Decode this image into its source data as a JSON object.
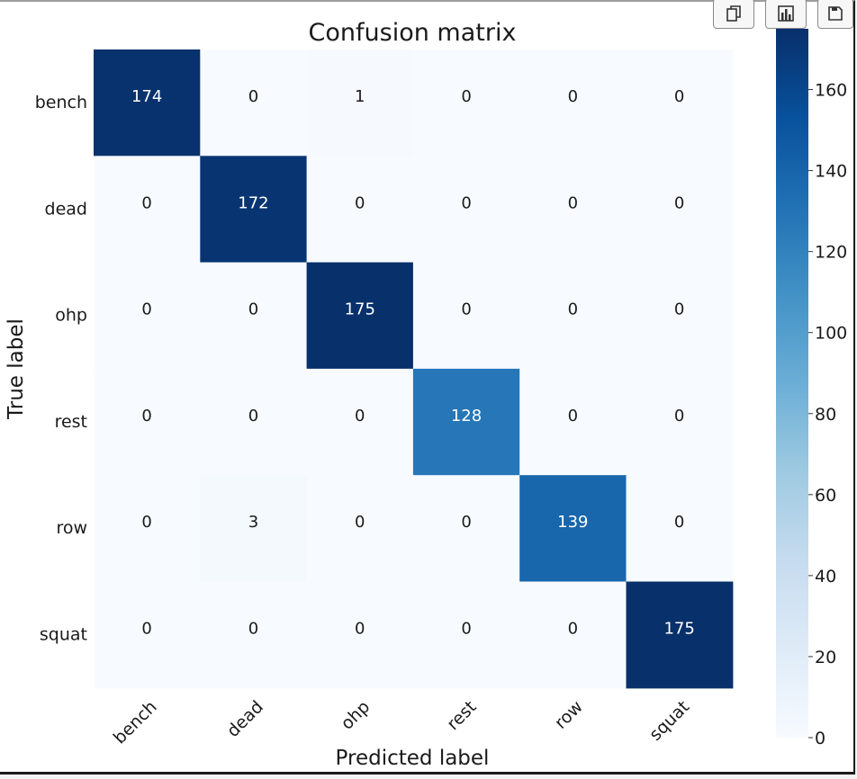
{
  "toolbar": {
    "buttons": [
      {
        "name": "copy-button",
        "icon": "copy-icon"
      },
      {
        "name": "chart-button",
        "icon": "bar-chart-icon"
      },
      {
        "name": "save-button",
        "icon": "save-icon"
      }
    ]
  },
  "chart_data": {
    "type": "heatmap",
    "title": "Confusion matrix",
    "xlabel": "Predicted label",
    "ylabel": "True label",
    "x_categories": [
      "bench",
      "dead",
      "ohp",
      "rest",
      "row",
      "squat"
    ],
    "y_categories": [
      "bench",
      "dead",
      "ohp",
      "rest",
      "row",
      "squat"
    ],
    "values": [
      [
        174,
        0,
        1,
        0,
        0,
        0
      ],
      [
        0,
        172,
        0,
        0,
        0,
        0
      ],
      [
        0,
        0,
        175,
        0,
        0,
        0
      ],
      [
        0,
        0,
        0,
        128,
        0,
        0
      ],
      [
        0,
        3,
        0,
        0,
        139,
        0
      ],
      [
        0,
        0,
        0,
        0,
        0,
        175
      ]
    ],
    "colormap": "Blues",
    "colorbar": {
      "min": 0,
      "max": 175,
      "ticks": [
        0,
        20,
        40,
        60,
        80,
        100,
        120,
        140,
        160
      ]
    },
    "colors": {
      "low": "#f7fbff",
      "high": "#08306b",
      "text_dark": "#1a1a1a",
      "text_light": "#ffffff"
    }
  }
}
